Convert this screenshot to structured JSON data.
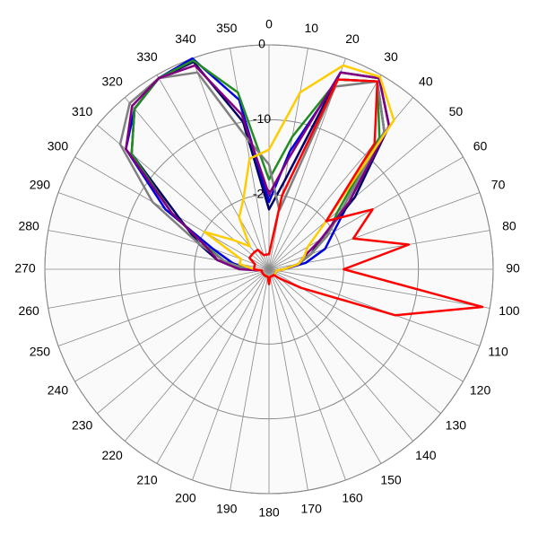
{
  "chart_data": {
    "type": "polar",
    "rlim": [
      -30,
      0
    ],
    "rticks": [
      -20,
      -10,
      0
    ],
    "thetaticks": [
      0,
      10,
      20,
      30,
      40,
      50,
      60,
      70,
      80,
      90,
      100,
      110,
      120,
      130,
      140,
      150,
      160,
      170,
      180,
      190,
      200,
      210,
      220,
      230,
      240,
      250,
      260,
      270,
      280,
      290,
      300,
      310,
      320,
      330,
      340,
      350
    ],
    "theta": [
      0,
      10,
      20,
      30,
      40,
      50,
      60,
      70,
      80,
      90,
      100,
      110,
      120,
      130,
      140,
      150,
      160,
      170,
      180,
      190,
      200,
      210,
      220,
      230,
      240,
      250,
      260,
      270,
      280,
      290,
      300,
      310,
      320,
      330,
      340,
      350
    ],
    "grid": true,
    "series": [
      {
        "color": "#0000dd",
        "values": [
          -21,
          -14,
          -3,
          -1,
          -6,
          -16,
          -20,
          -22,
          -25,
          -28,
          -29,
          -29,
          -29,
          -29,
          -29,
          -29,
          -29,
          -29,
          -29,
          -29,
          -29,
          -29,
          -29,
          -29,
          -29,
          -29,
          -29,
          -27,
          -25,
          -22,
          -14,
          -5,
          -2,
          -0.5,
          0,
          -7
        ]
      },
      {
        "color": "#000066",
        "values": [
          -22,
          -18,
          -2,
          -0.5,
          -5,
          -15,
          -22,
          -24,
          -26,
          -28,
          -29,
          -29,
          -29,
          -29,
          -29,
          -29,
          -29,
          -29,
          -29,
          -29,
          -29,
          -29,
          -29,
          -29,
          -29,
          -29,
          -29,
          -27,
          -23,
          -20,
          -16,
          -6,
          -2,
          -0.5,
          -0.5,
          -10
        ]
      },
      {
        "color": "#228b22",
        "values": [
          -18,
          -12,
          -3,
          -1,
          -7,
          -18,
          -21,
          -24,
          -26,
          -28,
          -29,
          -29,
          -29,
          -29,
          -29,
          -29,
          -29,
          -29,
          -29,
          -29,
          -29,
          -29,
          -29,
          -29,
          -29,
          -29,
          -29,
          -27,
          -24,
          -21,
          -15,
          -6,
          -2,
          -0.5,
          -0.3,
          -6
        ]
      },
      {
        "color": "#808080",
        "values": [
          -16,
          -22,
          -4,
          -1,
          -6,
          -17,
          -21,
          -24,
          -26,
          -28,
          -29,
          -29,
          -29,
          -29,
          -29,
          -29,
          -29,
          -29,
          -29,
          -29,
          -29,
          -29,
          -29,
          -29,
          -29,
          -29,
          -29,
          -27,
          -24,
          -20,
          -12,
          -4,
          -1,
          -0.5,
          -2,
          -12
        ]
      },
      {
        "color": "#800080",
        "values": [
          -20,
          -15,
          -2,
          -0.5,
          -5,
          -16,
          -22,
          -25,
          -26,
          -28,
          -29,
          -29,
          -29,
          -29,
          -29,
          -29,
          -29,
          -29,
          -29,
          -29,
          -29,
          -29,
          -29,
          -29,
          -29,
          -29,
          -29,
          -26,
          -23,
          -21,
          -15,
          -5,
          -1.5,
          -0.5,
          -1,
          -9
        ]
      },
      {
        "color": "#ffcc00",
        "values": [
          -14,
          -6,
          -1,
          -0.3,
          -4,
          -20,
          -24,
          -25,
          -26,
          -28,
          -29,
          -29,
          -29,
          -29,
          -29,
          -29,
          -29,
          -29,
          -29,
          -29,
          -29,
          -29,
          -29,
          -29,
          -29,
          -29,
          -29,
          -28,
          -26,
          -26,
          -20,
          -24,
          -26,
          -22,
          -20,
          -15
        ]
      },
      {
        "color": "#ff0000",
        "values": [
          -28,
          -20,
          -3,
          -1,
          -8,
          -20,
          -14,
          -18,
          -11,
          -20,
          -1,
          -12,
          -25,
          -28,
          -29,
          -29,
          -29,
          -29,
          -28,
          -29,
          -29,
          -29,
          -29,
          -29,
          -29,
          -29,
          -29,
          -28,
          -28,
          -28,
          -27,
          -27,
          -27,
          -27,
          -28,
          -28
        ]
      }
    ]
  }
}
